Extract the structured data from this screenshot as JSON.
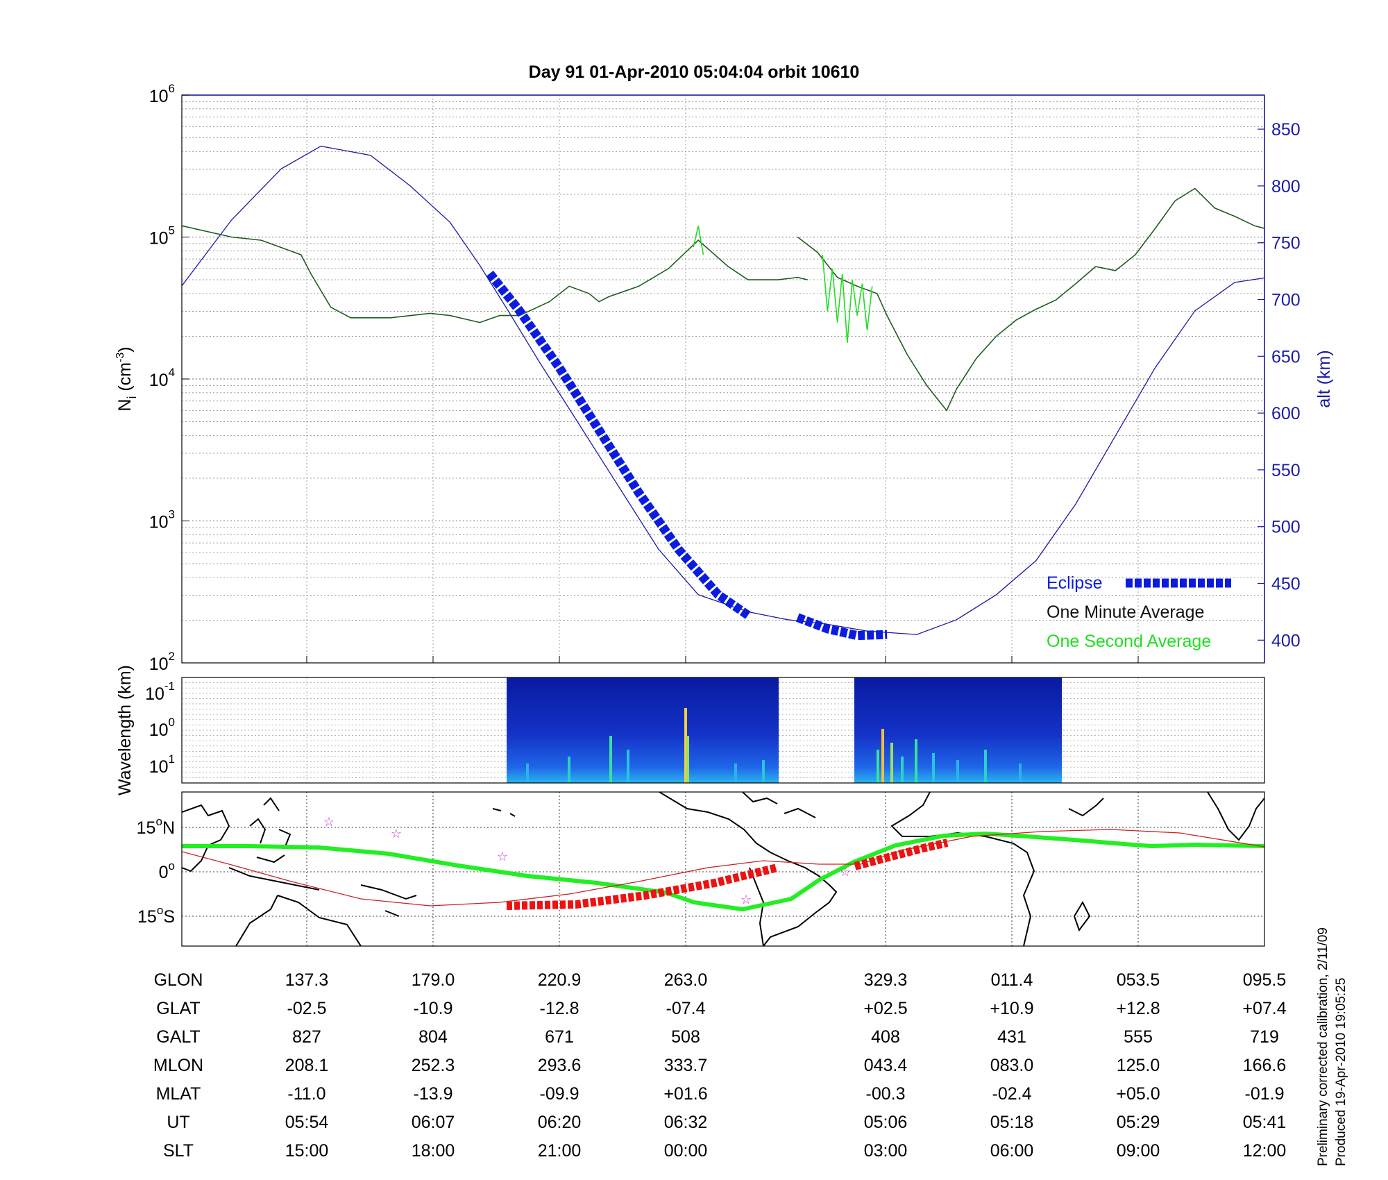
{
  "title": "Day 91  01-Apr-2010 05:04:04   orbit 10610",
  "panel1": {
    "ylabel_left": {
      "base": "N",
      "sub": "i",
      "unit_pre": " (cm",
      "unit_sup": "-3",
      "unit_post": ")"
    },
    "ylabel_right": "alt (km)",
    "left_ticks": [
      {
        "base": "10",
        "exp": "2",
        "value": 100
      },
      {
        "base": "10",
        "exp": "3",
        "value": 1000
      },
      {
        "base": "10",
        "exp": "4",
        "value": 10000
      },
      {
        "base": "10",
        "exp": "5",
        "value": 100000
      },
      {
        "base": "10",
        "exp": "6",
        "value": 1000000
      }
    ],
    "right_ticks": [
      "400",
      "450",
      "500",
      "550",
      "600",
      "650",
      "700",
      "750",
      "800",
      "850"
    ],
    "legend": {
      "eclipse": "Eclipse",
      "one_minute": "One Minute Average",
      "one_second": "One Second Average"
    }
  },
  "panel2": {
    "ylabel": "Wavelength (km)",
    "ticks": [
      {
        "base": "10",
        "exp": "-1"
      },
      {
        "base": "10",
        "exp": "0"
      },
      {
        "base": "10",
        "exp": "1"
      }
    ]
  },
  "panel3": {
    "ticks": [
      {
        "deg": "15",
        "dir": "N"
      },
      {
        "deg": "0",
        "dir": ""
      },
      {
        "deg": "15",
        "dir": "S"
      }
    ]
  },
  "table": {
    "rows": [
      {
        "label": "GLON",
        "values": [
          "137.3",
          "179.0",
          "220.9",
          "263.0",
          "329.3",
          "011.4",
          "053.5",
          "095.5"
        ]
      },
      {
        "label": "GLAT",
        "values": [
          "-02.5",
          "-10.9",
          "-12.8",
          "-07.4",
          "+02.5",
          "+10.9",
          "+12.8",
          "+07.4"
        ]
      },
      {
        "label": "GALT",
        "values": [
          "827",
          "804",
          "671",
          "508",
          "408",
          "431",
          "555",
          "719"
        ]
      },
      {
        "label": "MLON",
        "values": [
          "208.1",
          "252.3",
          "293.6",
          "333.7",
          "043.4",
          "083.0",
          "125.0",
          "166.6"
        ]
      },
      {
        "label": "MLAT",
        "values": [
          "-11.0",
          "-13.9",
          "-09.9",
          "+01.6",
          "-00.3",
          "-02.4",
          "+05.0",
          "-01.9"
        ]
      },
      {
        "label": "UT",
        "values": [
          "05:54",
          "06:07",
          "06:20",
          "06:32",
          "05:06",
          "05:18",
          "05:29",
          "05:41"
        ]
      },
      {
        "label": "SLT",
        "values": [
          "15:00",
          "18:00",
          "21:00",
          "00:00",
          "03:00",
          "06:00",
          "09:00",
          "12:00"
        ]
      }
    ]
  },
  "side_note": {
    "line1": "Preliminary corrected calibration, 2/11/09",
    "line2": "Produced 19-Apr-2010 19:05:25"
  },
  "colors": {
    "eclipse": "#0b1be0",
    "one_minute": "#1f5c1f",
    "one_second": "#22dd22",
    "altitude": "#1a1aaa",
    "footprint": "#22ee22",
    "equator": "#cc2222",
    "eclipse_map": "#ee1111",
    "stars": "#cc33cc"
  },
  "chart_data": {
    "type": "line",
    "title": "Day 91  01-Apr-2010 05:04:04   orbit 10610",
    "xlabel": "",
    "x": [
      "05:54",
      "06:07",
      "06:20",
      "06:32",
      "05:06",
      "05:18",
      "05:29",
      "05:41"
    ],
    "ylabel": "Ni (cm-3)",
    "ylabel_right": "alt (km)",
    "yscale": "log",
    "ylim": [
      100,
      1000000
    ],
    "ylim_right": [
      380,
      880
    ],
    "legend_position": "bottom-right",
    "series": [
      {
        "name": "One Minute Average",
        "axis": "left",
        "segments": [
          [
            [
              0.0,
              120000
            ],
            [
              0.05,
              100000
            ],
            [
              0.08,
              95000
            ],
            [
              0.12,
              75000
            ],
            [
              0.13,
              55000
            ],
            [
              0.15,
              32000
            ],
            [
              0.17,
              27000
            ],
            [
              0.21,
              27000
            ],
            [
              0.25,
              29000
            ],
            [
              0.27,
              28000
            ],
            [
              0.3,
              25000
            ],
            [
              0.32,
              28000
            ],
            [
              0.34,
              28000
            ],
            [
              0.37,
              35000
            ],
            [
              0.39,
              45000
            ],
            [
              0.41,
              40000
            ],
            [
              0.42,
              35000
            ],
            [
              0.43,
              38000
            ],
            [
              0.46,
              45000
            ],
            [
              0.49,
              60000
            ],
            [
              0.52,
              95000
            ],
            [
              0.55,
              62000
            ],
            [
              0.57,
              50000
            ],
            [
              0.6,
              50000
            ],
            [
              0.62,
              52000
            ],
            [
              0.63,
              50000
            ]
          ],
          [
            [
              0.62,
              100000
            ],
            [
              0.64,
              78000
            ],
            [
              0.66,
              52000
            ],
            [
              0.68,
              45000
            ],
            [
              0.7,
              40000
            ],
            [
              0.71,
              28000
            ],
            [
              0.73,
              15000
            ],
            [
              0.75,
              9000
            ],
            [
              0.77,
              6000
            ],
            [
              0.78,
              8500
            ],
            [
              0.8,
              14000
            ],
            [
              0.82,
              20000
            ],
            [
              0.84,
              26000
            ],
            [
              0.86,
              31000
            ],
            [
              0.88,
              36000
            ],
            [
              0.9,
              47000
            ],
            [
              0.92,
              62000
            ],
            [
              0.94,
              58000
            ],
            [
              0.96,
              75000
            ],
            [
              0.98,
              115000
            ],
            [
              1.0,
              180000
            ],
            [
              1.02,
              220000
            ],
            [
              1.04,
              160000
            ],
            [
              1.06,
              140000
            ],
            [
              1.08,
              120000
            ],
            [
              1.09,
              115000
            ]
          ]
        ]
      },
      {
        "name": "One Second Average",
        "axis": "left",
        "segments": [
          [
            [
              0.515,
              85000
            ],
            [
              0.52,
              120000
            ],
            [
              0.525,
              75000
            ]
          ],
          [
            [
              0.645,
              75000
            ],
            [
              0.65,
              30000
            ],
            [
              0.655,
              60000
            ],
            [
              0.66,
              25000
            ],
            [
              0.665,
              55000
            ],
            [
              0.67,
              18000
            ],
            [
              0.675,
              50000
            ],
            [
              0.68,
              28000
            ],
            [
              0.685,
              47000
            ],
            [
              0.69,
              22000
            ],
            [
              0.695,
              45000
            ]
          ]
        ]
      },
      {
        "name": "Altitude",
        "axis": "right",
        "points": [
          [
            0.0,
            712
          ],
          [
            0.05,
            770
          ],
          [
            0.1,
            815
          ],
          [
            0.14,
            835
          ],
          [
            0.19,
            827
          ],
          [
            0.23,
            800
          ],
          [
            0.27,
            768
          ],
          [
            0.3,
            730
          ],
          [
            0.33,
            688
          ],
          [
            0.36,
            645
          ],
          [
            0.4,
            590
          ],
          [
            0.44,
            535
          ],
          [
            0.48,
            480
          ],
          [
            0.52,
            440
          ],
          [
            0.57,
            425
          ],
          [
            0.61,
            418
          ],
          [
            0.65,
            414
          ],
          [
            0.69,
            408
          ],
          [
            0.74,
            405
          ],
          [
            0.78,
            418
          ],
          [
            0.82,
            440
          ],
          [
            0.86,
            470
          ],
          [
            0.9,
            520
          ],
          [
            0.94,
            580
          ],
          [
            0.98,
            640
          ],
          [
            1.02,
            690
          ],
          [
            1.06,
            715
          ],
          [
            1.09,
            719
          ]
        ]
      },
      {
        "name": "Eclipse",
        "axis": "right",
        "segments": [
          [
            [
              0.31,
              723
            ],
            [
              0.34,
              690
            ],
            [
              0.38,
              640
            ],
            [
              0.42,
              585
            ],
            [
              0.46,
              530
            ],
            [
              0.5,
              480
            ],
            [
              0.54,
              440
            ],
            [
              0.57,
              422
            ]
          ],
          [
            [
              0.62,
              420
            ],
            [
              0.65,
              410
            ],
            [
              0.68,
              404
            ],
            [
              0.71,
              405
            ]
          ]
        ]
      }
    ]
  }
}
